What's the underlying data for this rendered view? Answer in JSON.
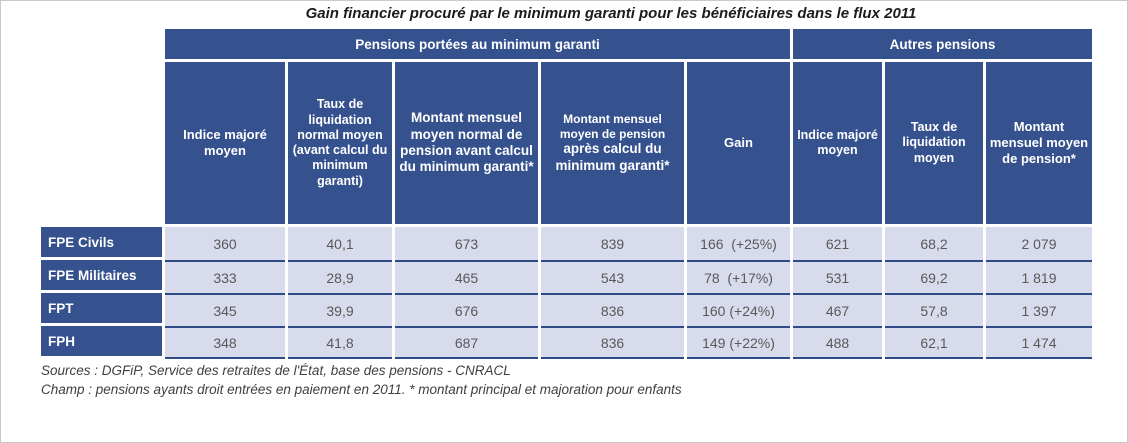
{
  "title": "Gain financier procuré par le minimum garanti pour les bénéficiaires dans le flux 2011",
  "colors": {
    "header_navy": "#35518E",
    "cell_light": "#D8DBEC",
    "separator_navy": "#2E4A87",
    "data_text_gray": "#595959"
  },
  "table": {
    "groups": [
      {
        "label": "Pensions portées au minimum garanti",
        "span": 5
      },
      {
        "label": "Autres pensions",
        "span": 3
      }
    ],
    "columns": [
      {
        "label": "Indice majoré moyen"
      },
      {
        "label": "Taux de liquidation normal moyen (avant calcul du minimum garanti)"
      },
      {
        "label": "Montant mensuel moyen normal de pension avant calcul du minimum garanti*"
      },
      {
        "label_small": "Montant mensuel moyen de pension",
        "label_large": "après calcul du minimum garanti*"
      },
      {
        "label": "Gain"
      },
      {
        "label": "Indice majoré moyen"
      },
      {
        "label": "Taux de liquidation moyen"
      },
      {
        "label": "Montant mensuel moyen de pension*"
      }
    ],
    "rows": [
      {
        "label": "FPE Civils",
        "values": [
          "360",
          "40,1",
          "673",
          "839",
          "166  (+25%)",
          "621",
          "68,2",
          "2 079"
        ]
      },
      {
        "label": "FPE Militaires",
        "values": [
          "333",
          "28,9",
          "465",
          "543",
          "78  (+17%)",
          "531",
          "69,2",
          "1 819"
        ]
      },
      {
        "label": "FPT",
        "values": [
          "345",
          "39,9",
          "676",
          "836",
          "160 (+24%)",
          "467",
          "57,8",
          "1 397"
        ]
      },
      {
        "label": "FPH",
        "values": [
          "348",
          "41,8",
          "687",
          "836",
          "149 (+22%)",
          "488",
          "62,1",
          "1 474"
        ]
      }
    ]
  },
  "footer": {
    "sources": "Sources : DGFiP, Service des retraites de l'État, base des pensions - CNRACL",
    "champ": "Champ : pensions ayants droit entrées en paiement en 2011. * montant principal et majoration pour enfants"
  },
  "chart_data": {
    "type": "table",
    "title": "Gain financier procuré par le minimum garanti pour les bénéficiaires dans le flux 2011",
    "column_groups": [
      {
        "label": "Pensions portées au minimum garanti",
        "columns": [
          0,
          1,
          2,
          3,
          4
        ]
      },
      {
        "label": "Autres pensions",
        "columns": [
          5,
          6,
          7
        ]
      }
    ],
    "columns": [
      "Indice majoré moyen",
      "Taux de liquidation normal moyen (avant calcul du minimum garanti)",
      "Montant mensuel moyen normal de pension avant calcul du minimum garanti*",
      "Montant mensuel moyen de pension après calcul du minimum garanti*",
      "Gain",
      "Indice majoré moyen (autres pensions)",
      "Taux de liquidation moyen (autres pensions)",
      "Montant mensuel moyen de pension* (autres pensions)"
    ],
    "rows": [
      {
        "label": "FPE Civils",
        "values": [
          360,
          40.1,
          673,
          839,
          166,
          621,
          68.2,
          2079
        ],
        "gain_pct": "+25%"
      },
      {
        "label": "FPE Militaires",
        "values": [
          333,
          28.9,
          465,
          543,
          78,
          531,
          69.2,
          1819
        ],
        "gain_pct": "+17%"
      },
      {
        "label": "FPT",
        "values": [
          345,
          39.9,
          676,
          836,
          160,
          467,
          57.8,
          1397
        ],
        "gain_pct": "+24%"
      },
      {
        "label": "FPH",
        "values": [
          348,
          41.8,
          687,
          836,
          149,
          488,
          62.1,
          1474
        ],
        "gain_pct": "+22%"
      }
    ],
    "notes": [
      "Sources : DGFiP, Service des retraites de l'État, base des pensions - CNRACL",
      "Champ : pensions ayants droit entrées en paiement en 2011. * montant principal et majoration pour enfants"
    ]
  }
}
